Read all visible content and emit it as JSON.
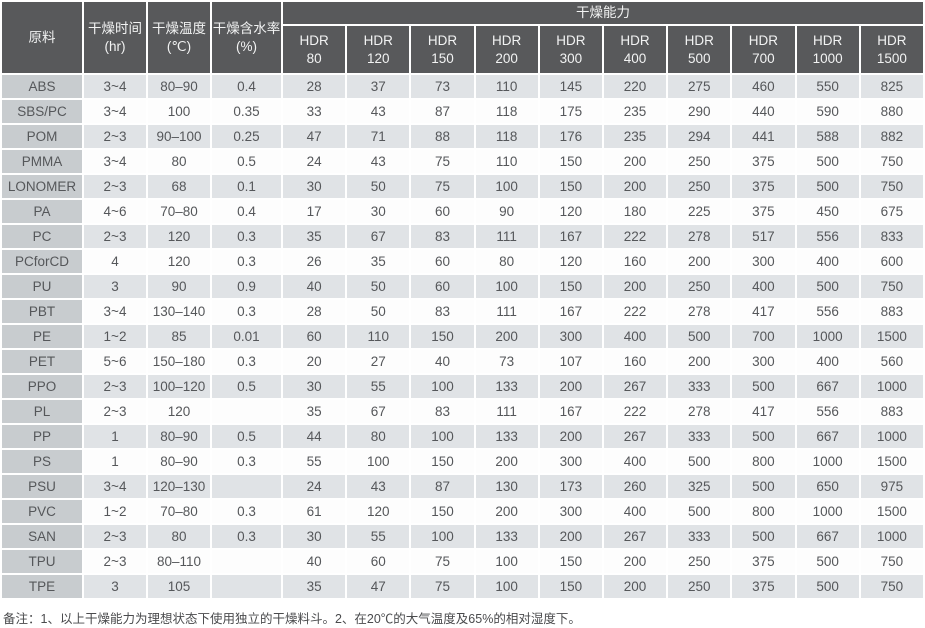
{
  "table": {
    "headers": {
      "material": "原料",
      "time": "干燥时间",
      "time_unit": "(hr)",
      "temp": "干燥温度",
      "temp_unit": "(℃)",
      "moisture": "干燥含水率",
      "moisture_unit": "(%)",
      "capacity_group": "干燥能力"
    },
    "hdr_columns": [
      "HDR 80",
      "HDR 120",
      "HDR 150",
      "HDR 200",
      "HDR 300",
      "HDR 400",
      "HDR 500",
      "HDR 700",
      "HDR 1000",
      "HDR 1500"
    ],
    "rows": [
      {
        "material": "ABS",
        "time": "3~4",
        "temp": "80–90",
        "moisture": "0.4",
        "values": [
          28,
          37,
          73,
          110,
          145,
          220,
          275,
          460,
          550,
          825
        ]
      },
      {
        "material": "SBS/PC",
        "time": "3~4",
        "temp": "100",
        "moisture": "0.35",
        "values": [
          33,
          43,
          87,
          118,
          175,
          235,
          290,
          440,
          590,
          880
        ]
      },
      {
        "material": "POM",
        "time": "2~3",
        "temp": "90–100",
        "moisture": "0.25",
        "values": [
          47,
          71,
          88,
          118,
          176,
          235,
          294,
          441,
          588,
          882
        ]
      },
      {
        "material": "PMMA",
        "time": "3~4",
        "temp": "80",
        "moisture": "0.5",
        "values": [
          24,
          43,
          75,
          110,
          150,
          200,
          250,
          375,
          500,
          750
        ]
      },
      {
        "material": "LONOMER",
        "time": "2~3",
        "temp": "68",
        "moisture": "0.1",
        "values": [
          30,
          50,
          75,
          100,
          150,
          200,
          250,
          375,
          500,
          750
        ]
      },
      {
        "material": "PA",
        "time": "4~6",
        "temp": "70–80",
        "moisture": "0.4",
        "values": [
          17,
          30,
          60,
          90,
          120,
          180,
          225,
          375,
          450,
          675
        ]
      },
      {
        "material": "PC",
        "time": "2~3",
        "temp": "120",
        "moisture": "0.3",
        "values": [
          35,
          67,
          83,
          111,
          167,
          222,
          278,
          517,
          556,
          833
        ]
      },
      {
        "material": "PCforCD",
        "time": "4",
        "temp": "120",
        "moisture": "0.3",
        "values": [
          26,
          35,
          60,
          80,
          120,
          160,
          200,
          300,
          400,
          600
        ]
      },
      {
        "material": "PU",
        "time": "3",
        "temp": "90",
        "moisture": "0.9",
        "values": [
          40,
          50,
          60,
          100,
          150,
          200,
          250,
          400,
          500,
          750
        ]
      },
      {
        "material": "PBT",
        "time": "3~4",
        "temp": "130–140",
        "moisture": "0.3",
        "values": [
          28,
          50,
          83,
          111,
          167,
          222,
          278,
          417,
          556,
          883
        ]
      },
      {
        "material": "PE",
        "time": "1~2",
        "temp": "85",
        "moisture": "0.01",
        "values": [
          60,
          110,
          150,
          200,
          300,
          400,
          500,
          700,
          1000,
          1500
        ]
      },
      {
        "material": "PET",
        "time": "5~6",
        "temp": "150–180",
        "moisture": "0.3",
        "values": [
          20,
          27,
          40,
          73,
          107,
          160,
          200,
          300,
          400,
          560
        ]
      },
      {
        "material": "PPO",
        "time": "2~3",
        "temp": "100–120",
        "moisture": "0.5",
        "values": [
          30,
          55,
          100,
          133,
          200,
          267,
          333,
          500,
          667,
          1000
        ]
      },
      {
        "material": "PL",
        "time": "2~3",
        "temp": "120",
        "moisture": "",
        "values": [
          35,
          67,
          83,
          111,
          167,
          222,
          278,
          417,
          556,
          883
        ]
      },
      {
        "material": "PP",
        "time": "1",
        "temp": "80–90",
        "moisture": "0.5",
        "values": [
          44,
          80,
          100,
          133,
          200,
          267,
          333,
          500,
          667,
          1000
        ]
      },
      {
        "material": "PS",
        "time": "1",
        "temp": "80–90",
        "moisture": "0.3",
        "values": [
          55,
          100,
          150,
          200,
          300,
          400,
          500,
          800,
          1000,
          1500
        ]
      },
      {
        "material": "PSU",
        "time": "3~4",
        "temp": "120–130",
        "moisture": "",
        "values": [
          24,
          43,
          87,
          130,
          173,
          260,
          325,
          500,
          650,
          975
        ]
      },
      {
        "material": "PVC",
        "time": "1~2",
        "temp": "70–80",
        "moisture": "0.3",
        "values": [
          61,
          120,
          150,
          200,
          300,
          400,
          500,
          800,
          1000,
          1500
        ]
      },
      {
        "material": "SAN",
        "time": "2~3",
        "temp": "80",
        "moisture": "0.3",
        "values": [
          30,
          55,
          100,
          133,
          200,
          267,
          333,
          500,
          667,
          1000
        ]
      },
      {
        "material": "TPU",
        "time": "2~3",
        "temp": "80–110",
        "moisture": "",
        "values": [
          40,
          60,
          75,
          100,
          150,
          200,
          250,
          375,
          500,
          750
        ]
      },
      {
        "material": "TPE",
        "time": "3",
        "temp": "105",
        "moisture": "",
        "values": [
          35,
          47,
          75,
          100,
          150,
          200,
          250,
          375,
          500,
          750
        ]
      }
    ]
  },
  "footer": {
    "note": "备注：1、以上干燥能力为理想状态下使用独立的干燥料斗。2、在20℃的大气温度及65%的相对湿度下。"
  },
  "colors": {
    "page_bg": "#ffffff",
    "grid_line": "#ffffff",
    "header_bg": "#58595b",
    "header_text": "#f2f3f3",
    "material_col_bg": "#c8cccf",
    "stripe_row_bg": "#e0e3e6",
    "white_row_bg": "#fdfdfd",
    "cell_text": "#55575a",
    "note_text": "#4a4b4d"
  }
}
